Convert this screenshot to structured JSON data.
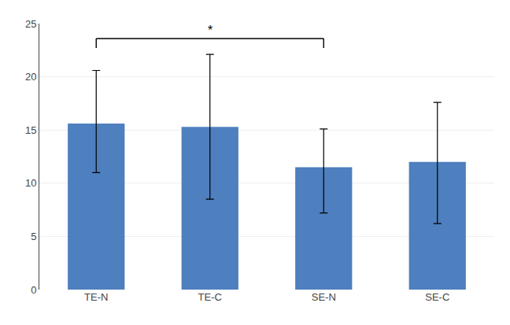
{
  "chart_data": {
    "type": "bar",
    "categories": [
      "TE-N",
      "TE-C",
      "SE-N",
      "SE-C"
    ],
    "values": [
      15.6,
      15.3,
      11.5,
      12.0
    ],
    "error_upper": [
      5.0,
      6.8,
      3.6,
      5.6
    ],
    "error_lower": [
      4.6,
      6.8,
      4.3,
      5.8
    ],
    "color": "#4E7FBE",
    "ylim": [
      0,
      25
    ],
    "yticks": [
      0,
      5,
      10,
      15,
      20,
      25
    ],
    "grid": true,
    "brackets": [
      {
        "from": "TE-N",
        "to": "SE-N",
        "y": 23.6,
        "drop": 0.9,
        "label": "*"
      }
    ]
  }
}
